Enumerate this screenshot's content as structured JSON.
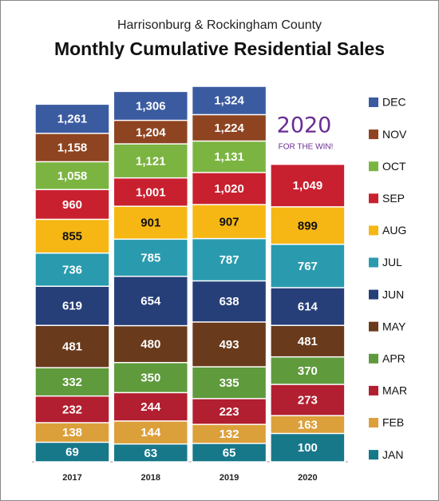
{
  "chart_data": {
    "type": "bar",
    "title": "Monthly Cumulative Residential Sales",
    "subtitle": "Harrisonburg & Rockingham County",
    "annotations": [
      "2020",
      "FOR THE WIN!"
    ],
    "categories": [
      "2017",
      "2018",
      "2019",
      "2020"
    ],
    "series": [
      {
        "name": "JAN",
        "color": "#17788a",
        "values": [
          69,
          63,
          65,
          100
        ]
      },
      {
        "name": "FEB",
        "color": "#dca03a",
        "values": [
          138,
          144,
          132,
          163
        ]
      },
      {
        "name": "MAR",
        "color": "#b21f30",
        "values": [
          232,
          244,
          223,
          273
        ]
      },
      {
        "name": "APR",
        "color": "#5f9a3c",
        "values": [
          332,
          350,
          335,
          370
        ]
      },
      {
        "name": "MAY",
        "color": "#6a3a1c",
        "values": [
          481,
          480,
          493,
          481
        ]
      },
      {
        "name": "JUN",
        "color": "#263f78",
        "values": [
          619,
          654,
          638,
          614
        ]
      },
      {
        "name": "JUL",
        "color": "#2a9bae",
        "values": [
          736,
          785,
          787,
          767
        ]
      },
      {
        "name": "AUG",
        "color": "#f6b715",
        "values": [
          855,
          901,
          907,
          899
        ]
      },
      {
        "name": "SEP",
        "color": "#c9202f",
        "values": [
          960,
          1001,
          1020,
          1049
        ],
        "value_labels": [
          "960",
          "1,001",
          "1,020",
          "1,049"
        ]
      },
      {
        "name": "OCT",
        "color": "#7cb442",
        "values": [
          1058,
          1121,
          1131,
          null
        ],
        "value_labels": [
          "1,058",
          "1,121",
          "1,131",
          null
        ]
      },
      {
        "name": "NOV",
        "color": "#8e4420",
        "values": [
          1158,
          1204,
          1224,
          null
        ],
        "value_labels": [
          "1,158",
          "1,204",
          "1,224",
          null
        ]
      },
      {
        "name": "DEC",
        "color": "#3b5ba1",
        "values": [
          1261,
          1306,
          1324,
          null
        ],
        "value_labels": [
          "1,261",
          "1,306",
          "1,324",
          null
        ]
      }
    ]
  }
}
